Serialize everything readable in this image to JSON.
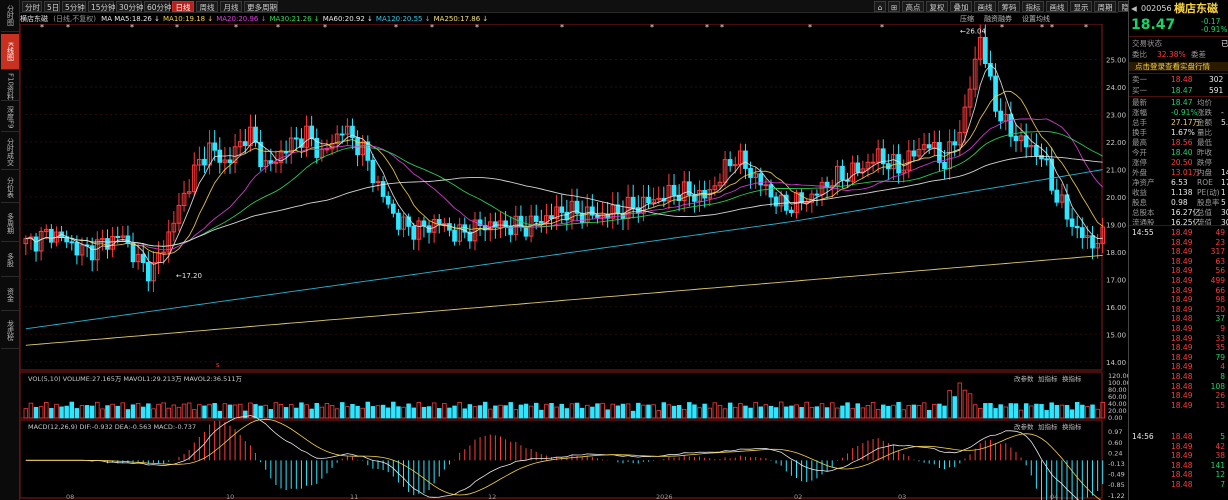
{
  "toolbar": {
    "periods": [
      "分时",
      "5日",
      "5分钟",
      "15分钟",
      "30分钟",
      "60分钟",
      "日线",
      "周线",
      "月线",
      "更多周期"
    ],
    "active_period": "日线",
    "right_buttons": [
      "高点",
      "复权",
      "叠加",
      "画线",
      "筹码",
      "指标",
      "画线",
      "显示",
      "周期",
      "隐藏"
    ]
  },
  "left_tabs": [
    "分时图",
    "K线图",
    "F10资料",
    "深度F9",
    "分时成交",
    "分价表",
    "多周期",
    "多股",
    "资金",
    "龙虎榜"
  ],
  "left_tabs_active": "K线图",
  "legend": {
    "stock": "横店东磁",
    "mode": "(日线,不复权)",
    "items": [
      {
        "text": "MA MA5:18.26",
        "color": "#e8e8e8"
      },
      {
        "text": "MA10:19.18",
        "color": "#f5d142"
      },
      {
        "text": "MA20:20.96",
        "color": "#e040e0"
      },
      {
        "text": "MA30:21.26",
        "color": "#2edb5a"
      },
      {
        "text": "MA60:20.92",
        "color": "#e8e8e8"
      },
      {
        "text": "MA120:20.55",
        "color": "#2ec7e8"
      },
      {
        "text": "MA250:17.86",
        "color": "#f5e070"
      }
    ],
    "right": [
      "压缩",
      "融资融券",
      "设置均线"
    ]
  },
  "chart_data": {
    "type": "candlestick",
    "price_axis": {
      "min": 13.7,
      "max": 26.0,
      "ticks": [
        14.0,
        15.0,
        16.0,
        17.0,
        18.0,
        19.0,
        20.0,
        21.0,
        22.0,
        23.0,
        24.0,
        25.0
      ]
    },
    "annotations": [
      {
        "text": "←17.20"
      },
      {
        "text": "←26.04"
      }
    ],
    "marker_bottom": "s",
    "x_labels": [
      "08",
      "10",
      "11",
      "12",
      "2026",
      "02",
      "03",
      "04"
    ],
    "volume": {
      "legend": "VOL(5,10) VOLUME:27.165万 MAVOL1:29.213万 MAVOL2:36.511万",
      "ticks": [
        0.0,
        20.0,
        40.0,
        60.0,
        80.0,
        100.0,
        120.0
      ],
      "buttons": [
        "改参数",
        "加指标",
        "换指标"
      ]
    },
    "macd": {
      "legend": "MACD(12,26,9) DIF:-0.932 DEA:-0.563 MACD:-0.737",
      "ticks": [
        0.97,
        0.6,
        0.24,
        -0.13,
        -0.49,
        -0.85,
        -1.22
      ],
      "buttons": [
        "改参数",
        "加指标",
        "换指标"
      ]
    }
  },
  "quote": {
    "code": "002056",
    "name": "横店东磁",
    "price": "18.47",
    "change": "-0.17",
    "change_pct": "-0.91%",
    "status_label": "交易状态",
    "status_value": "已",
    "weibi_label": "委比",
    "weibi_value": "32.38%",
    "weicha_label": "委差",
    "link": "点击登录查看实盘行情",
    "ask1_label": "卖一",
    "ask1_price": "18.48",
    "ask1_vol": "302",
    "bid1_label": "买一",
    "bid1_price": "18.47",
    "bid1_vol": "591",
    "stats": [
      {
        "l": "最新",
        "v": "18.47",
        "vc": "green",
        "l2": "均价",
        "v2": ""
      },
      {
        "l": "涨幅",
        "v": "-0.91%",
        "vc": "green",
        "l2": "涨跌",
        "v2": "-"
      },
      {
        "l": "总手",
        "v": "27.17万",
        "vc": "yellow",
        "l2": "金额",
        "v2": "5."
      },
      {
        "l": "换手",
        "v": "1.67%",
        "vc": "white",
        "l2": "量比",
        "v2": ""
      },
      {
        "l": "最高",
        "v": "18.56",
        "vc": "red",
        "l2": "最低",
        "v2": ""
      },
      {
        "l": "今开",
        "v": "18.40",
        "vc": "green",
        "l2": "昨收",
        "v2": ""
      },
      {
        "l": "涨停",
        "v": "20.50",
        "vc": "red",
        "l2": "跌停",
        "v2": ""
      },
      {
        "l": "外盘",
        "v": "13.01万",
        "vc": "red",
        "l2": "内盘",
        "v2": "14."
      },
      {
        "l": "净资产",
        "v": "6.53",
        "vc": "white",
        "l2": "ROE",
        "v2": "17"
      },
      {
        "l": "收益",
        "v": "1.138",
        "vc": "white",
        "l2": "PE(动)",
        "v2": "1"
      },
      {
        "l": "股息",
        "v": "0.98",
        "vc": "white",
        "l2": "股息率",
        "v2": "5"
      },
      {
        "l": "总股本",
        "v": "16.27亿",
        "vc": "white",
        "l2": "总值",
        "v2": "300"
      },
      {
        "l": "流通股",
        "v": "16.25亿",
        "vc": "white",
        "l2": "流值",
        "v2": "300"
      }
    ],
    "ticks_1455": {
      "time": "14:55",
      "rows": [
        {
          "p": "18.49",
          "v": "49",
          "vc": "red"
        },
        {
          "p": "18.49",
          "v": "23",
          "vc": "red"
        },
        {
          "p": "18.49",
          "v": "317",
          "vc": "red"
        },
        {
          "p": "18.49",
          "v": "63",
          "vc": "red"
        },
        {
          "p": "18.49",
          "v": "56",
          "vc": "red"
        },
        {
          "p": "18.49",
          "v": "499",
          "vc": "red"
        },
        {
          "p": "18.49",
          "v": "66",
          "vc": "red"
        },
        {
          "p": "18.49",
          "v": "98",
          "vc": "red"
        },
        {
          "p": "18.49",
          "v": "20",
          "vc": "red"
        },
        {
          "p": "18.48",
          "v": "37",
          "vc": "green"
        },
        {
          "p": "18.49",
          "v": "9",
          "vc": "red"
        },
        {
          "p": "18.49",
          "v": "33",
          "vc": "red"
        },
        {
          "p": "18.49",
          "v": "35",
          "vc": "red"
        },
        {
          "p": "18.49",
          "v": "79",
          "vc": "green"
        },
        {
          "p": "18.49",
          "v": "4",
          "vc": "red"
        },
        {
          "p": "18.48",
          "v": "8",
          "vc": "green"
        },
        {
          "p": "18.48",
          "v": "108",
          "vc": "green"
        },
        {
          "p": "18.49",
          "v": "26",
          "vc": "red"
        },
        {
          "p": "18.49",
          "v": "15",
          "vc": "red"
        }
      ]
    },
    "ticks_1456": {
      "time": "14:56",
      "rows": [
        {
          "p": "18.48",
          "v": "5",
          "vc": "green"
        },
        {
          "p": "18.49",
          "v": "42",
          "vc": "red"
        },
        {
          "p": "18.49",
          "v": "38",
          "vc": "red"
        },
        {
          "p": "18.48",
          "v": "141",
          "vc": "green"
        },
        {
          "p": "18.48",
          "v": "12",
          "vc": "green"
        },
        {
          "p": "18.48",
          "v": "7",
          "vc": "green"
        }
      ]
    }
  }
}
